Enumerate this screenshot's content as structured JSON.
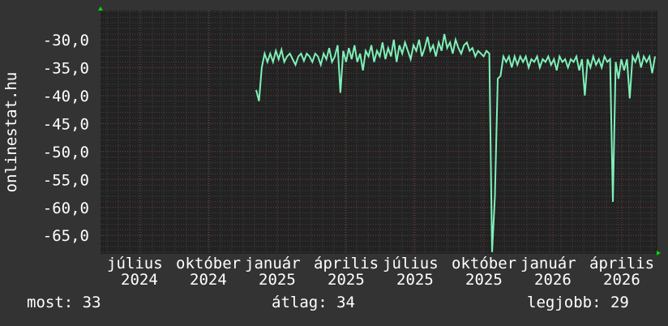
{
  "chart_data": {
    "type": "line",
    "ylabel": "onlinestat.hu",
    "ylim": [
      -68.3,
      -24.8
    ],
    "y_ticks": [
      "-30,0",
      "-35,0",
      "-40,0",
      "-45,0",
      "-50,0",
      "-55,0",
      "-60,0",
      "-65,0"
    ],
    "y_tick_values": [
      -30,
      -35,
      -40,
      -45,
      -50,
      -55,
      -60,
      -65
    ],
    "x_tick_labels": [
      {
        "month": "július",
        "year": "2024"
      },
      {
        "month": "október",
        "year": "2024"
      },
      {
        "month": "január",
        "year": "2025"
      },
      {
        "month": "április",
        "year": "2025"
      },
      {
        "month": "július",
        "year": "2025"
      },
      {
        "month": "október",
        "year": "2025"
      },
      {
        "month": "január",
        "year": "2026"
      },
      {
        "month": "április",
        "year": "2026"
      }
    ],
    "grid": true,
    "line_color": "#7ff0b8",
    "background_color": "#333333",
    "plot_background": "#222222",
    "values": [
      -39,
      -41,
      -35,
      -32.5,
      -34,
      -32.5,
      -34,
      -32,
      -33.5,
      -31.8,
      -34,
      -33,
      -32.5,
      -33.5,
      -34.5,
      -33,
      -32.5,
      -33.8,
      -32.5,
      -33,
      -34,
      -32.5,
      -33,
      -34.5,
      -32.5,
      -33.5,
      -31.5,
      -34,
      -33,
      -31,
      -39.5,
      -32,
      -34,
      -31.5,
      -33.5,
      -31,
      -34,
      -32.5,
      -35.5,
      -32,
      -33,
      -31,
      -34,
      -32,
      -33,
      -30.5,
      -33.5,
      -31.5,
      -33,
      -30,
      -34,
      -31,
      -32.5,
      -30.5,
      -32,
      -33.5,
      -31,
      -32,
      -30,
      -33,
      -31.5,
      -29.5,
      -32,
      -31,
      -33,
      -30.5,
      -32,
      -29,
      -31.5,
      -30.5,
      -32.5,
      -30,
      -31.5,
      -32.5,
      -31,
      -30.5,
      -32,
      -31.5,
      -33,
      -32,
      -32.5,
      -33,
      -32,
      -32.5,
      -68,
      -58,
      -37,
      -36.5,
      -33,
      -34,
      -33,
      -35,
      -33,
      -34.5,
      -33,
      -34,
      -33,
      -35,
      -33.5,
      -34,
      -33,
      -35,
      -33.5,
      -34,
      -33,
      -34.5,
      -33.5,
      -35.5,
      -33,
      -34,
      -33.5,
      -35,
      -33.5,
      -34,
      -33,
      -35.5,
      -33.5,
      -40,
      -33.5,
      -35,
      -33,
      -34.5,
      -33.5,
      -35,
      -33,
      -34,
      -33.5,
      -59,
      -34,
      -37,
      -33.5,
      -35.5,
      -33.5,
      -40.5,
      -33,
      -34,
      -32.5,
      -35,
      -33,
      -34,
      -33,
      -36,
      -33
    ]
  },
  "legend": {
    "current": "most: 33",
    "average": "átlag: 34",
    "best": "legjobb: 29"
  }
}
